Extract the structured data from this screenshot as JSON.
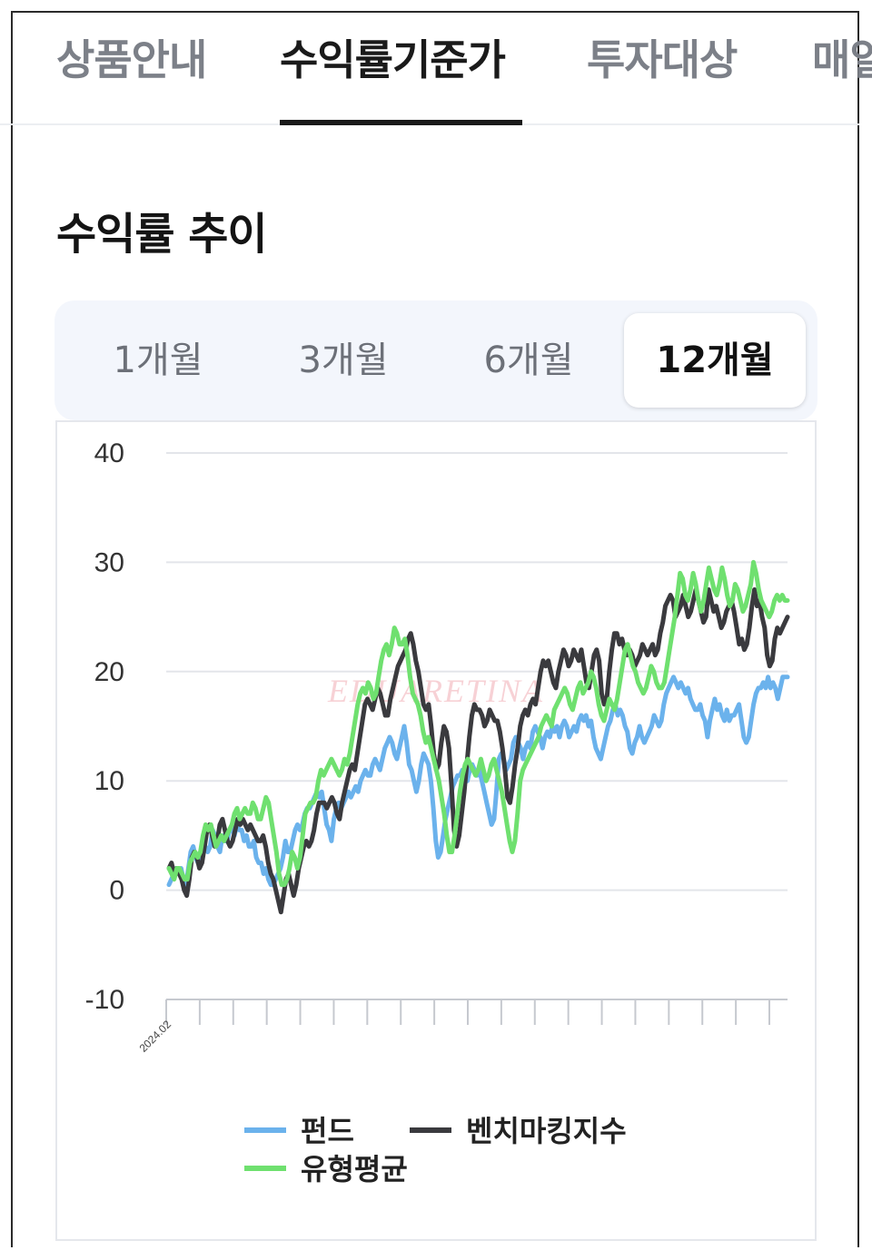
{
  "tabs": [
    "상품안내",
    "수익률기준가",
    "투자대상",
    "매일"
  ],
  "active_tab": "수익률기준가",
  "section_title": "수익률 추이",
  "periods": [
    "1개월",
    "3개월",
    "6개월",
    "12개월"
  ],
  "active_period": "12개월",
  "watermark": "EDUARETINA",
  "colors": {
    "fund": "#6bb2ec",
    "benchmark": "#3a3a3e",
    "peer_avg": "#6fe06f",
    "grid": "#e3e5ea",
    "tick": "#c6c9cf"
  },
  "chart_data": {
    "type": "line",
    "title": "",
    "xlabel": "",
    "ylabel": "",
    "ylim": [
      -10,
      40
    ],
    "yticks": [
      "40",
      "30",
      "20",
      "10",
      "0",
      "-10"
    ],
    "x_tick_labels": [
      "2024.02"
    ],
    "tick_count": 19,
    "grid": true,
    "legend_position": "bottom",
    "series": [
      {
        "name": "펀드",
        "color": "#6bb2ec",
        "values": [
          0.5,
          1,
          1.5,
          2,
          1.5,
          2,
          1,
          0.5,
          2,
          3.5,
          4,
          3,
          2.5,
          3.5,
          4.5,
          4,
          3.5,
          4,
          5.5,
          5,
          4,
          3.5,
          5,
          4.5,
          4.5,
          5.5,
          6,
          5,
          6,
          5.5,
          5.5,
          4.5,
          5,
          4,
          4,
          4.5,
          3,
          2.5,
          2.5,
          1.5,
          2,
          1,
          0.5,
          0.5,
          1,
          1.5,
          2,
          3,
          4.5,
          3.5,
          3.5,
          4.5,
          5.5,
          6,
          5.5,
          6,
          7,
          7.5,
          7.5,
          8,
          8.5,
          9,
          8.5,
          9,
          7.5,
          6,
          5.5,
          4.5,
          6.5,
          7.5,
          8,
          7.5,
          8,
          8.5,
          9,
          8.5,
          9,
          9.5,
          9,
          10,
          10.5,
          11,
          10.5,
          10.5,
          11.5,
          12,
          11.5,
          11,
          12,
          13,
          13.5,
          14,
          13.5,
          12.5,
          12,
          13,
          14,
          15,
          13.5,
          11.5,
          11,
          10,
          9,
          10,
          11.5,
          12.5,
          12,
          11.5,
          10,
          7.5,
          4.5,
          3,
          3.5,
          5,
          6.5,
          7.5,
          8.5,
          9.5,
          10,
          10.5,
          10.5,
          11,
          10.5,
          10,
          11,
          11.5,
          11,
          10.5,
          11,
          10,
          9,
          8,
          7,
          6,
          6.5,
          9,
          12,
          12.5,
          12,
          11,
          11.5,
          12,
          13.5,
          14,
          13.5,
          13,
          12,
          13,
          13.5,
          13,
          14.5,
          15,
          14.5,
          14,
          13,
          14,
          14.5,
          14,
          15,
          14.5,
          15,
          14,
          15,
          15.5,
          15,
          14,
          14.5,
          15,
          14.5,
          15.5,
          16,
          15.5,
          16,
          15,
          15.5,
          14,
          13,
          12.5,
          12,
          13,
          14,
          15,
          15.5,
          16.5,
          17,
          16,
          16.5,
          16,
          15,
          14.5,
          13,
          12.5,
          13.5,
          14,
          15,
          14,
          13.5,
          14,
          14.5,
          15,
          16,
          15.5,
          15,
          15.5,
          17,
          18,
          18.5,
          19,
          19.5,
          19,
          18.5,
          19,
          18.5,
          18,
          18.5,
          17.5,
          17,
          16.5,
          16.5,
          17,
          16,
          15.5,
          14,
          15.5,
          16.5,
          17.5,
          16.5,
          17,
          16,
          15.5,
          16.5,
          15.5,
          16,
          16,
          16.5,
          17,
          15.5,
          14,
          13.5,
          14,
          15.5,
          17,
          18,
          18.5,
          18.5,
          19,
          18.5,
          19.5,
          18.5,
          19,
          18.5,
          17.5,
          18.5,
          19.5,
          19.5,
          19.5
        ]
      },
      {
        "name": "벤치마킹지수",
        "color": "#3a3a3e",
        "values": [
          2,
          2.5,
          1.5,
          2,
          1.5,
          1,
          0,
          -0.5,
          1,
          3,
          3.5,
          3,
          2,
          2.5,
          4,
          5.5,
          6,
          5,
          4,
          4.5,
          6,
          6.5,
          5.5,
          4.5,
          4,
          4.5,
          5.5,
          6.5,
          6,
          6.5,
          6,
          5.5,
          6,
          5.5,
          5,
          4.5,
          4.5,
          5,
          4,
          2.5,
          1.5,
          1,
          0,
          -1,
          -2,
          -0.5,
          1,
          1.5,
          0.5,
          -0.5,
          0.5,
          2,
          3,
          4,
          4.5,
          4,
          4.5,
          5.5,
          7,
          8,
          8,
          8,
          7.5,
          8,
          8.5,
          8,
          7,
          6.5,
          8,
          9,
          10,
          11,
          11.5,
          11,
          12.5,
          14,
          15.5,
          17,
          17.5,
          17,
          16.5,
          17.5,
          18.5,
          18,
          17,
          16,
          16,
          17.5,
          18.5,
          19.5,
          20.5,
          21,
          21.5,
          22,
          23,
          23.5,
          22.5,
          21,
          20,
          18.5,
          17,
          16.5,
          17,
          15,
          12.5,
          11,
          11.5,
          13.5,
          15,
          14.5,
          13,
          9.5,
          5.5,
          4,
          5,
          7,
          9,
          11.5,
          14,
          16,
          17,
          16.5,
          16.5,
          16,
          15,
          15.5,
          16.5,
          16,
          15.5,
          15.5,
          14.5,
          13,
          11,
          8.5,
          8,
          9.5,
          11.5,
          13,
          15,
          16,
          16.5,
          16,
          17,
          17.5,
          17,
          18.5,
          20,
          21,
          20.5,
          21,
          20,
          19,
          18.5,
          20,
          21,
          22,
          21.5,
          20.5,
          21,
          22,
          21.5,
          21,
          22,
          20.5,
          19,
          18.5,
          20,
          21.5,
          22,
          21,
          18,
          17,
          17.5,
          20,
          22,
          23.5,
          23.5,
          22.5,
          23,
          22,
          21.5,
          22,
          21.5,
          20.5,
          21,
          21.5,
          22.5,
          22,
          21.5,
          22,
          22.5,
          21.5,
          22,
          23.5,
          24.5,
          26,
          26.5,
          27,
          26.5,
          25,
          25.5,
          26,
          27,
          26,
          25,
          25.5,
          26.5,
          27.5,
          26.5,
          25.5,
          24.5,
          25,
          27.5,
          26.5,
          25.5,
          26,
          25,
          24,
          24.5,
          25.5,
          26,
          26.5,
          25.5,
          24,
          22.5,
          23,
          22,
          22.5,
          24,
          26,
          27.5,
          26,
          26.5,
          25,
          24,
          21.5,
          20.5,
          21,
          23,
          24,
          23.5,
          24,
          24.5,
          25
        ]
      },
      {
        "name": "유형평균",
        "color": "#6fe06f",
        "values": [
          2,
          1.5,
          1,
          2,
          2,
          1.5,
          1,
          1,
          2.5,
          3,
          3.5,
          3,
          3.5,
          5,
          6,
          5.5,
          6,
          5,
          4,
          4.5,
          5,
          4.5,
          5,
          5.5,
          6,
          7,
          7.5,
          6.5,
          7,
          7.5,
          7,
          7,
          8,
          7.5,
          6.5,
          6.5,
          7.5,
          8.5,
          8,
          6.5,
          5,
          3.5,
          1.5,
          0.5,
          0.5,
          1,
          2,
          3.5,
          3,
          2,
          3,
          5,
          7,
          7.5,
          8,
          8,
          8.5,
          10,
          11,
          10.5,
          11,
          11.5,
          12,
          11.5,
          11,
          10.5,
          11,
          12,
          11.5,
          12.5,
          14,
          15.5,
          17,
          18,
          18.5,
          18,
          19,
          18.5,
          17.5,
          18,
          19.5,
          21,
          22,
          22.5,
          21.5,
          22.5,
          24,
          23.5,
          22.5,
          22.5,
          23,
          21.5,
          19.5,
          18,
          17.5,
          17,
          16,
          14.5,
          13.5,
          14,
          13,
          12,
          11,
          10,
          8.5,
          7,
          5,
          3.5,
          3.5,
          5,
          7,
          9,
          10.5,
          11.5,
          12,
          11.5,
          11,
          10.5,
          11,
          12,
          11,
          10,
          10.5,
          11.5,
          12,
          11,
          10,
          9,
          7.5,
          6,
          4.5,
          3.5,
          4.5,
          7,
          10,
          11,
          11.5,
          12,
          12.5,
          13,
          13.5,
          14,
          15,
          15.5,
          16,
          15.5,
          15,
          16.5,
          17,
          17.5,
          18,
          18.5,
          18,
          17,
          16.5,
          17.5,
          18.5,
          19,
          18,
          18.5,
          19,
          20,
          19.5,
          18.5,
          17,
          16,
          15.5,
          16.5,
          17.5,
          17,
          16.5,
          17.5,
          19,
          20.5,
          22,
          22.5,
          21.5,
          20.5,
          20,
          19,
          18.5,
          18,
          18.5,
          19.5,
          20.5,
          20,
          19,
          18.5,
          18.5,
          19,
          20.5,
          22,
          23.5,
          25,
          27,
          29,
          28.5,
          27,
          26.5,
          27.5,
          29,
          28,
          26.5,
          25.5,
          26.5,
          28,
          29.5,
          28.5,
          27.5,
          27,
          28,
          29.5,
          28.5,
          27,
          26,
          26.5,
          28,
          27.5,
          26.5,
          25.5,
          26,
          27,
          28,
          30,
          29,
          27.5,
          26.5,
          26,
          25.5,
          25,
          25.5,
          26.5,
          27,
          26.5,
          27,
          26.5,
          26.5
        ]
      }
    ]
  }
}
